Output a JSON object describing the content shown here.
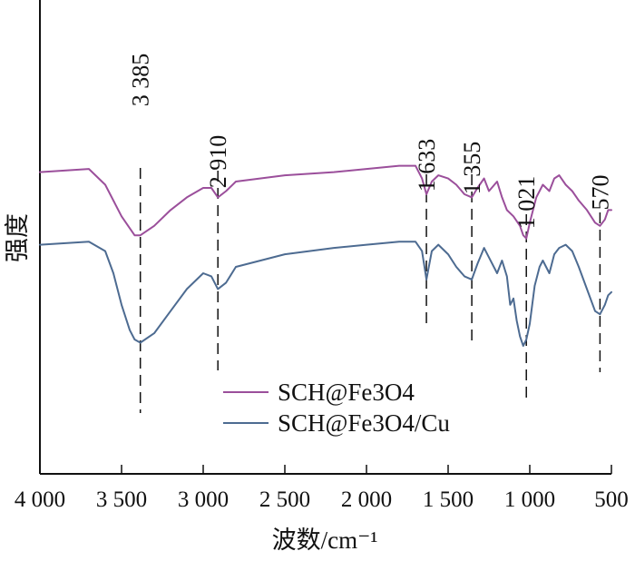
{
  "chart_data": {
    "type": "line",
    "title": "",
    "xlabel": "波数/cm⁻¹",
    "ylabel": "强度",
    "x_reversed": true,
    "xlim": [
      4000,
      500
    ],
    "x_ticks": [
      4000,
      3500,
      3000,
      2500,
      2000,
      1500,
      1000,
      500
    ],
    "x_tick_labels": [
      "4 000",
      "3 500",
      "3 000",
      "2 500",
      "2 000",
      "1 500",
      "1 000",
      "500"
    ],
    "ylim": [
      0,
      100
    ],
    "y_ticks_shown": false,
    "grid": false,
    "legend_position": "lower-middle",
    "peak_markers": [
      {
        "x": 3385,
        "label": "3 385"
      },
      {
        "x": 2910,
        "label": "2 910"
      },
      {
        "x": 1633,
        "label": "1 633"
      },
      {
        "x": 1355,
        "label": "1 355"
      },
      {
        "x": 1021,
        "label": "1 021"
      },
      {
        "x": 570,
        "label": "570"
      }
    ],
    "series": [
      {
        "name": "SCH@Fe3O4",
        "color": "#9b4f9b",
        "x": [
          4000,
          3700,
          3600,
          3500,
          3420,
          3385,
          3300,
          3200,
          3100,
          3000,
          2950,
          2910,
          2860,
          2800,
          2500,
          2200,
          2000,
          1800,
          1700,
          1660,
          1633,
          1600,
          1560,
          1500,
          1450,
          1400,
          1355,
          1320,
          1280,
          1250,
          1200,
          1170,
          1140,
          1100,
          1060,
          1040,
          1021,
          1000,
          960,
          920,
          880,
          850,
          820,
          780,
          740,
          700,
          650,
          600,
          570,
          540,
          520,
          500
        ],
        "y": [
          80,
          81,
          76,
          66,
          60,
          60,
          63,
          68,
          72,
          75,
          75,
          72,
          74,
          77,
          79,
          80,
          81,
          82,
          82,
          78,
          73,
          77,
          79,
          78,
          76,
          73,
          72,
          75,
          78,
          74,
          77,
          72,
          68,
          66,
          63,
          60,
          59,
          64,
          72,
          76,
          74,
          78,
          79,
          76,
          74,
          71,
          68,
          64,
          63,
          65,
          68,
          68
        ]
      },
      {
        "name": "SCH@Fe3O4/Cu",
        "color": "#4d6b91",
        "x": [
          4000,
          3700,
          3600,
          3550,
          3500,
          3450,
          3420,
          3385,
          3300,
          3200,
          3100,
          3000,
          2950,
          2910,
          2860,
          2800,
          2500,
          2200,
          2000,
          1800,
          1700,
          1660,
          1633,
          1600,
          1560,
          1500,
          1450,
          1400,
          1355,
          1320,
          1280,
          1250,
          1200,
          1170,
          1140,
          1120,
          1100,
          1080,
          1060,
          1040,
          1021,
          1000,
          970,
          940,
          920,
          880,
          850,
          820,
          780,
          740,
          700,
          650,
          600,
          570,
          540,
          520,
          500
        ],
        "y": [
          57,
          58,
          55,
          48,
          38,
          30,
          27,
          26,
          29,
          36,
          43,
          48,
          47,
          43,
          45,
          50,
          54,
          56,
          57,
          58,
          58,
          55,
          46,
          55,
          57,
          54,
          50,
          47,
          46,
          51,
          56,
          53,
          48,
          52,
          47,
          38,
          40,
          33,
          28,
          25,
          27,
          32,
          44,
          50,
          52,
          48,
          54,
          56,
          57,
          55,
          50,
          43,
          36,
          35,
          38,
          41,
          42
        ]
      }
    ]
  }
}
